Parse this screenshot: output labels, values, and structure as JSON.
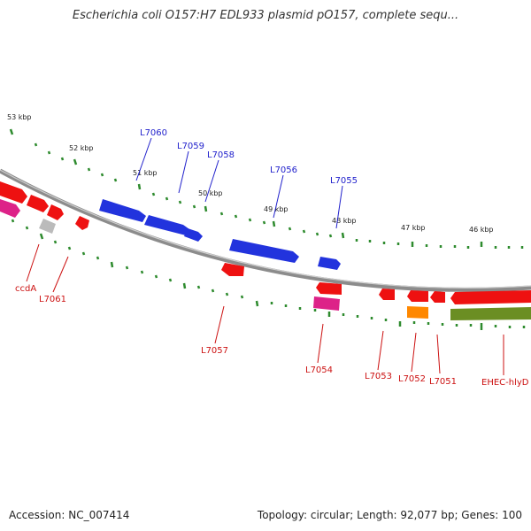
{
  "title": "Escherichia coli O157:H7 EDL933 plasmid pO157, complete sequ...",
  "accession": "Accession: NC_007414",
  "summary": "Topology: circular; Length: 92,077 bp; Genes: 100",
  "colors": {
    "backbone": "#8c8c8c",
    "tick": "#2e8b2e",
    "blue": "#2233dd",
    "red": "#ee1111",
    "magenta": "#dd2288",
    "gray": "#bbbbbb",
    "orange": "#ff8800",
    "olive": "#6b8e23",
    "label_blue": "#2222cc",
    "label_red": "#cc1111"
  },
  "kbp_labels": [
    "53 kbp",
    "52 kbp",
    "51 kbp",
    "50 kbp",
    "49 kbp",
    "48 kbp",
    "47 kbp",
    "46 kbp"
  ],
  "genes_top": [
    "L7060",
    "L7059",
    "L7058",
    "L7056",
    "L7055"
  ],
  "genes_bottom": [
    "ccdA",
    "L7061",
    "L7057",
    "L7054",
    "L7053",
    "L7052",
    "L7051",
    "EHEC-hlyD"
  ]
}
